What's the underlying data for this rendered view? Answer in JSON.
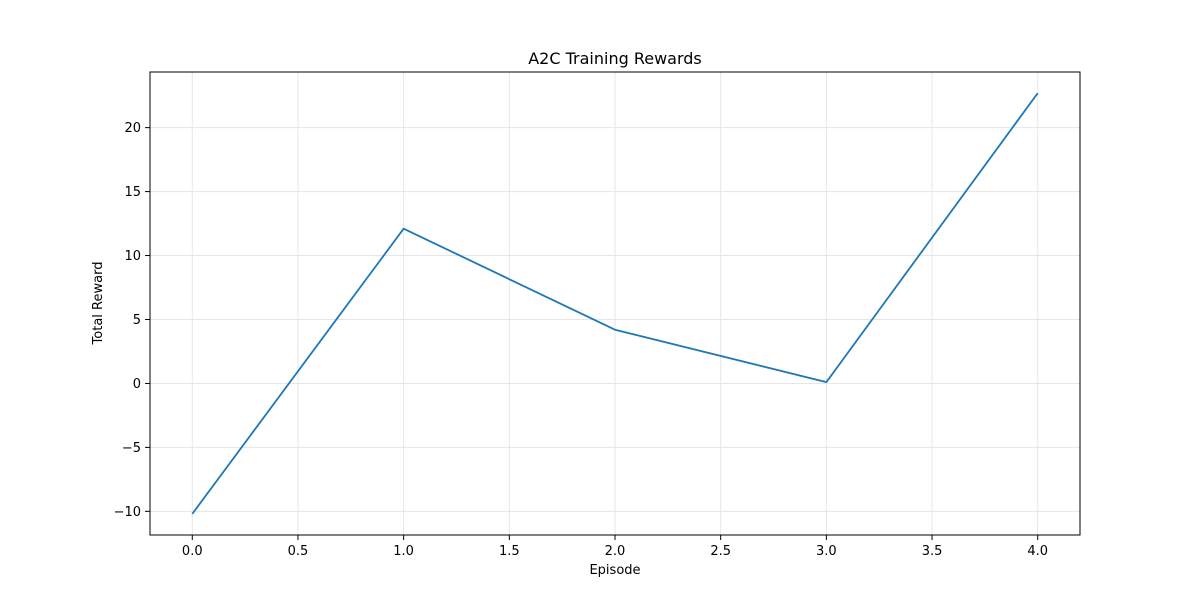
{
  "chart_data": {
    "type": "line",
    "title": "A2C Training Rewards",
    "xlabel": "Episode",
    "ylabel": "Total Reward",
    "x": [
      0,
      1,
      2,
      3,
      4
    ],
    "series": [
      {
        "values": [
          -10.2,
          12.1,
          4.2,
          0.1,
          22.7
        ],
        "color": "#1f77b4"
      }
    ],
    "xlim": [
      -0.2,
      4.2
    ],
    "ylim": [
      -11.85,
      24.35
    ],
    "xticks": [
      0.0,
      0.5,
      1.0,
      1.5,
      2.0,
      2.5,
      3.0,
      3.5,
      4.0
    ],
    "xtick_labels": [
      "0.0",
      "0.5",
      "1.0",
      "1.5",
      "2.0",
      "2.5",
      "3.0",
      "3.5",
      "4.0"
    ],
    "yticks": [
      -10,
      -5,
      0,
      5,
      10,
      15,
      20
    ],
    "ytick_labels": [
      "−10",
      "−5",
      "0",
      "5",
      "10",
      "15",
      "20"
    ],
    "grid": true
  }
}
